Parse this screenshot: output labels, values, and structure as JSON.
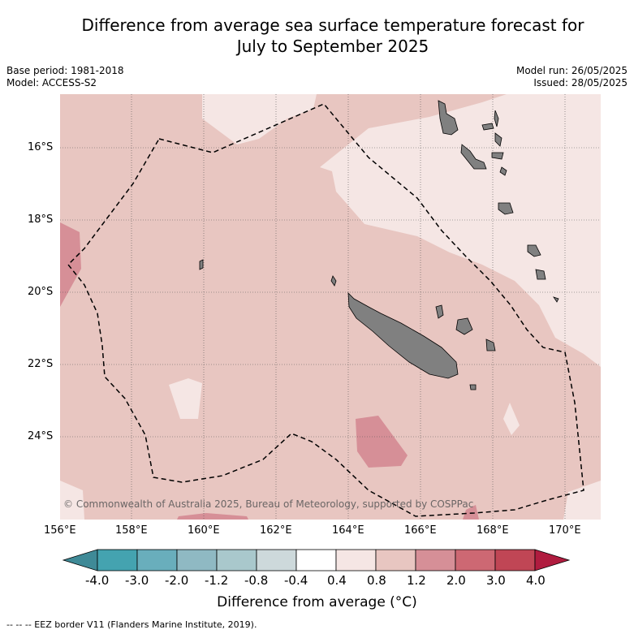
{
  "title_line1": "Difference from average sea surface temperature forecast for",
  "title_line2": "July to September 2025",
  "meta_left": [
    "Base period: 1981-2018",
    "Model: ACCESS-S2"
  ],
  "meta_right": [
    "Model run: 26/05/2025",
    "Issued: 28/05/2025"
  ],
  "copyright": "© Commonwealth of Australia 2025, Bureau of Meteorology, supported by COSPPac",
  "lat_labels": [
    "16°S",
    "18°S",
    "20°S",
    "22°S",
    "24°S"
  ],
  "lon_labels": [
    "156°E",
    "158°E",
    "160°E",
    "162°E",
    "164°E",
    "166°E",
    "168°E",
    "170°E"
  ],
  "colorbar": {
    "ticks": [
      "-4.0",
      "-3.0",
      "-2.0",
      "-1.2",
      "-0.8",
      "-0.4",
      "0.4",
      "0.8",
      "1.2",
      "2.0",
      "3.0",
      "4.0"
    ],
    "colors": [
      "#3f8a97",
      "#44a3b0",
      "#69aebc",
      "#8fb9c3",
      "#a9c8cc",
      "#cdd9db",
      "#ffffff",
      "#f5e6e4",
      "#e8c6c1",
      "#d68f97",
      "#cd6873",
      "#c04655",
      "#b01c3f"
    ],
    "label": "Difference from average (°C)"
  },
  "footer": "--  --  -- EEZ border V11 (Flanders Marine Institute, 2019).",
  "map_colors": {
    "base": "#e8c6c1",
    "light": "#f5e6e4",
    "warm": "#d68f97",
    "land": "#808080"
  }
}
